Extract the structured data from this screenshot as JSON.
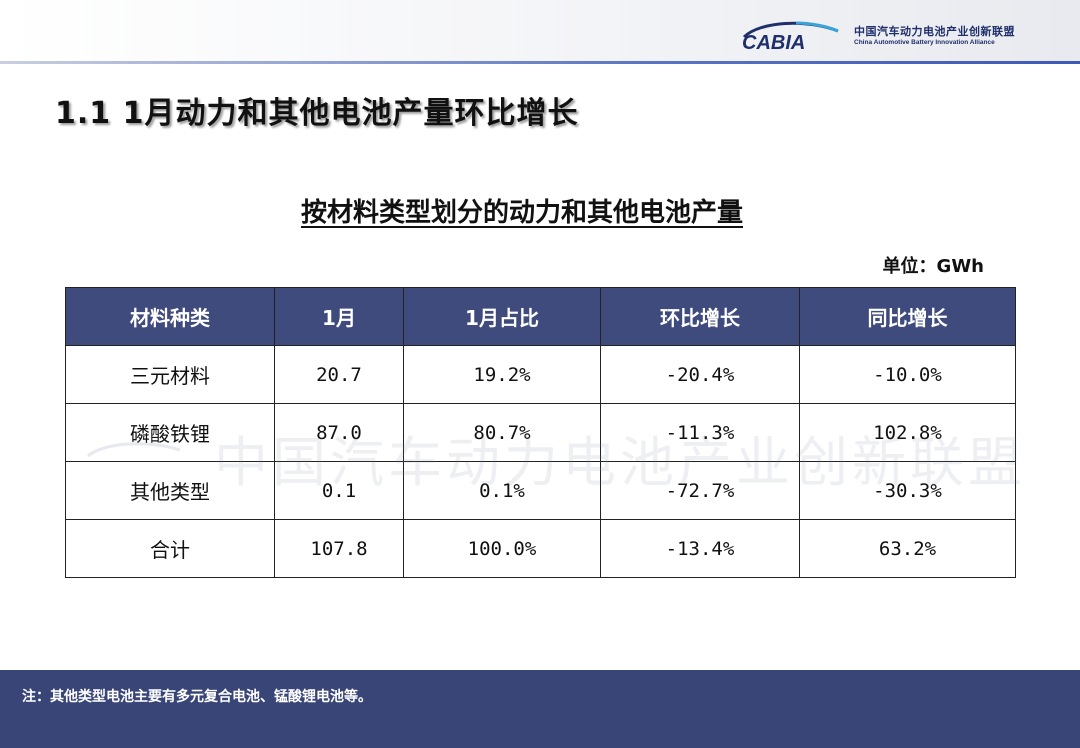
{
  "brand": {
    "logo_text": "CABIA",
    "name_cn": "中国汽车动力电池产业创新联盟",
    "name_en": "China Automotive Battery Innovation Alliance",
    "accent_color": "#3d59b8"
  },
  "page": {
    "title": "1.1 1月动力和其他电池产量环比增长",
    "table_heading": "按材料类型划分的动力和其他电池产量",
    "unit": "单位：GWh",
    "watermark_text": "中国汽车动力电池产业创新联盟"
  },
  "table": {
    "header_color": "#3f4a7d",
    "columns": [
      "材料种类",
      "1月",
      "1月占比",
      "环比增长",
      "同比增长"
    ],
    "rows": [
      [
        "三元材料",
        "20.7",
        "19.2%",
        "-20.4%",
        "-10.0%"
      ],
      [
        "磷酸铁锂",
        "87.0",
        "80.7%",
        "-11.3%",
        "102.8%"
      ],
      [
        "其他类型",
        "0.1",
        "0.1%",
        "-72.7%",
        "-30.3%"
      ],
      [
        "合计",
        "107.8",
        "100.0%",
        "-13.4%",
        "63.2%"
      ]
    ]
  },
  "footer": {
    "note": "注：其他类型电池主要有多元复合电池、锰酸锂电池等。",
    "band_color": "#3a4577"
  }
}
